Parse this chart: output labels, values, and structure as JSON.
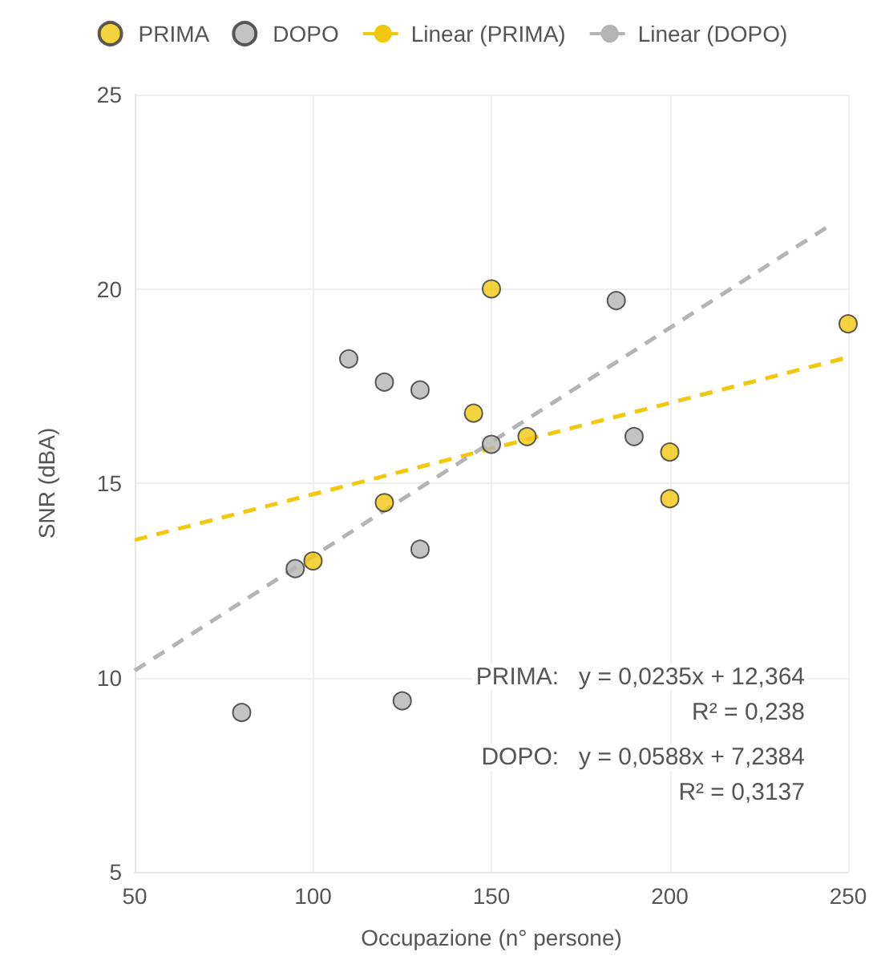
{
  "chart_data": {
    "type": "scatter",
    "xlabel": "Occupazione (n° persone)",
    "ylabel": "SNR (dBA)",
    "xlim": [
      50,
      250
    ],
    "xticks": [
      50,
      100,
      150,
      200,
      250
    ],
    "ylim": [
      5,
      25
    ],
    "yticks": [
      5,
      10,
      15,
      20,
      25
    ],
    "grid": true,
    "legend": "top",
    "marker": "circle",
    "series": [
      {
        "name": "PRIMA",
        "color": "#f2c80f",
        "x": [
          150,
          145,
          160,
          120,
          100,
          200,
          200,
          250
        ],
        "values": [
          20,
          16.8,
          16.2,
          14.5,
          13,
          15.8,
          14.6,
          19.1
        ]
      },
      {
        "name": "DOPO",
        "color": "#b4b4b4",
        "x": [
          110,
          120,
          130,
          150,
          185,
          190,
          95,
          130,
          80,
          125
        ],
        "values": [
          18.2,
          17.6,
          17.4,
          16,
          19.7,
          16.2,
          12.8,
          13.3,
          9.1,
          9.4
        ]
      },
      {
        "name": "Linear (PRIMA)",
        "type": "line",
        "color": "#f2c80f",
        "line_style": "dashed",
        "marker": "none",
        "x": [
          50,
          250
        ],
        "values": [
          13.54,
          18.24
        ]
      },
      {
        "name": "Linear (DOPO)",
        "type": "line",
        "color": "#b4b4b4",
        "line_style": "dashed",
        "marker": "none",
        "x": [
          50,
          245
        ],
        "values": [
          10.18,
          21.64
        ]
      }
    ],
    "annotations": [
      "PRIMA:   y = 0,0235x + 12,364",
      "R² = 0,238",
      "DOPO:   y = 0,0588x + 7,2384",
      "R² = 0,3137"
    ]
  }
}
